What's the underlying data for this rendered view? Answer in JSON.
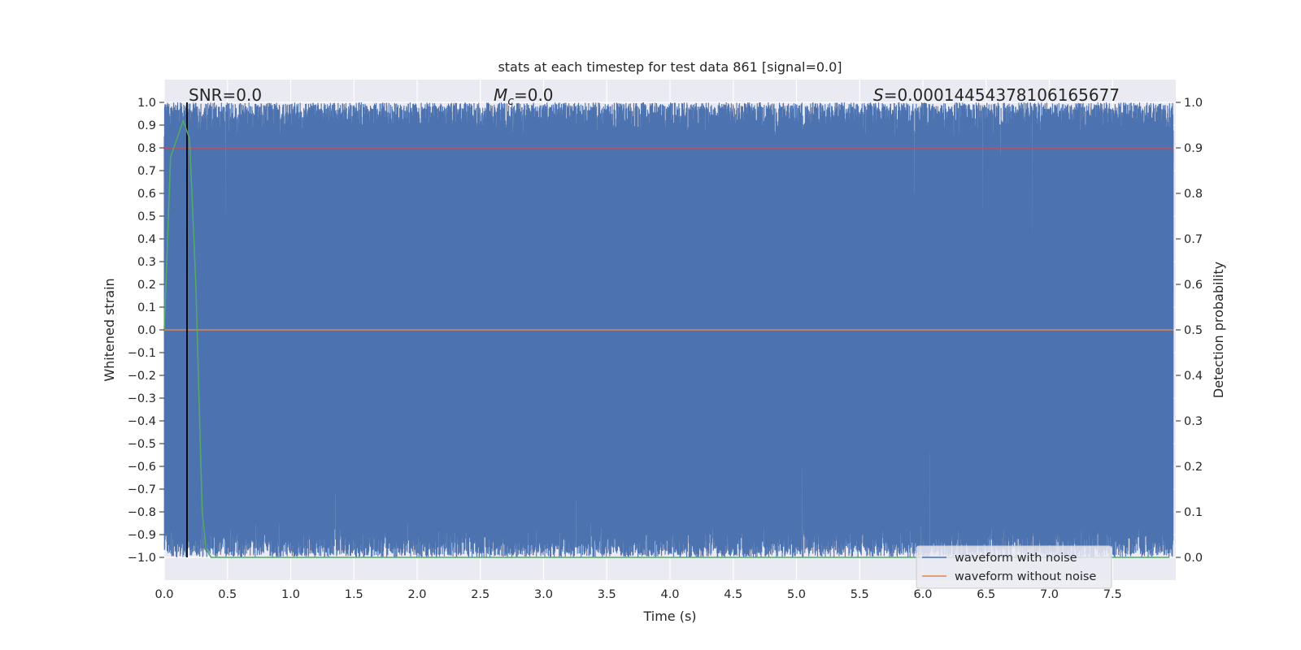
{
  "chart_data": {
    "type": "line",
    "title": "stats at each timestep for test data 861 [signal=0.0]",
    "xlabel": "Time (s)",
    "ylabel_left": "Whitened strain",
    "ylabel_right": "Detection probability",
    "xlim": [
      0.0,
      8.0
    ],
    "ylim_left": [
      -1.1,
      1.1
    ],
    "ylim_right": [
      -0.05,
      1.05
    ],
    "x_ticks": [
      "0.0",
      "0.5",
      "1.0",
      "1.5",
      "2.0",
      "2.5",
      "3.0",
      "3.5",
      "4.0",
      "4.5",
      "5.0",
      "5.5",
      "6.0",
      "6.5",
      "7.0",
      "7.5"
    ],
    "y_ticks_left": [
      "1.0",
      "0.9",
      "0.8",
      "0.7",
      "0.6",
      "0.5",
      "0.4",
      "0.3",
      "0.2",
      "0.1",
      "0.0",
      "−0.1",
      "−0.2",
      "−0.3",
      "−0.4",
      "−0.5",
      "−0.6",
      "−0.7",
      "−0.8",
      "−0.9",
      "−1.0"
    ],
    "y_ticks_right": [
      "1.0",
      "0.9",
      "0.8",
      "0.7",
      "0.6",
      "0.5",
      "0.4",
      "0.3",
      "0.2",
      "0.1",
      "0.0"
    ],
    "grid": true,
    "annotations": {
      "snr": "SNR=0.0",
      "mc_symbol": "M",
      "mc_sub": "c",
      "mc_value": "=0.0",
      "s_symbol": "S",
      "s_value": "=0.00014454378106165677"
    },
    "legend": {
      "placement": "lower-right",
      "entries": [
        "waveform with noise",
        "waveform without noise"
      ]
    },
    "series": [
      {
        "name": "waveform with noise",
        "axis": "left",
        "color": "#4c72b0",
        "description": "whitened noisy strain oscillating over [-1, 1]",
        "range": [
          -1.0,
          1.0
        ]
      },
      {
        "name": "waveform without noise",
        "axis": "left",
        "color": "#dd8452",
        "values_constant": 0.0
      },
      {
        "axis": "right",
        "color": "#55a868",
        "x": [
          0.0,
          0.05,
          0.1,
          0.15,
          0.2,
          0.25,
          0.3,
          0.33,
          0.37,
          0.5,
          1.0,
          7.95
        ],
        "y": [
          0.5,
          0.88,
          0.92,
          0.96,
          0.92,
          0.6,
          0.1,
          0.02,
          0.0,
          0.0,
          0.0,
          0.0
        ]
      },
      {
        "axis": "right",
        "color": "#c44e52",
        "values_constant": 0.9
      }
    ],
    "vlines": [
      {
        "x": 0.18,
        "color": "#000000",
        "range_left": [
          -1.0,
          1.0
        ]
      }
    ]
  }
}
